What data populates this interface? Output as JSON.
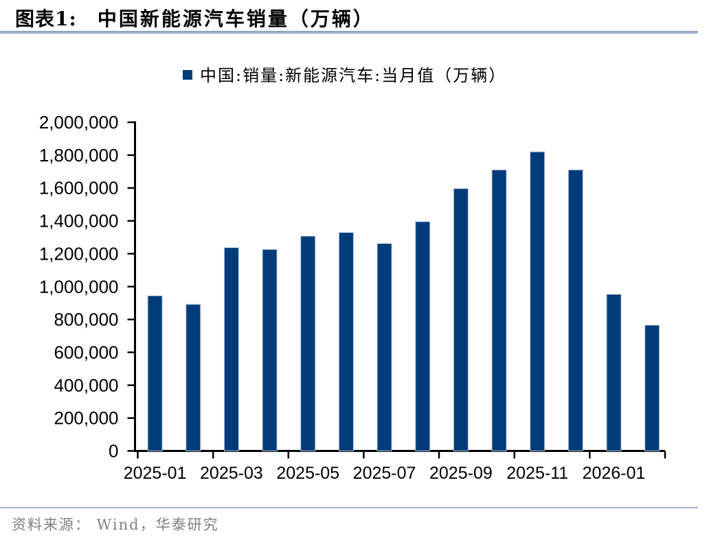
{
  "header": {
    "figure_label": "图表1:",
    "title": "中国新能源汽车销量（万辆）"
  },
  "legend": {
    "label": "中国:销量:新能源汽车:当月值（万辆）",
    "marker_color": "#003B7A"
  },
  "footer": {
    "source": "资料来源： Wind，华泰研究"
  },
  "colors": {
    "bar": "#003B7A",
    "bar_edge": "#B9C7DA",
    "axis": "#000000",
    "rule_line": "#9DB3CA",
    "source_text": "#7F7F7F"
  },
  "chart_data": {
    "type": "bar",
    "title": "中国新能源汽车销量（万辆）",
    "series_name": "中国:销量:新能源汽车:当月值（万辆）",
    "categories": [
      "2025-01",
      "2025-02",
      "2025-03",
      "2025-04",
      "2025-05",
      "2025-06",
      "2025-07",
      "2025-08",
      "2025-09",
      "2025-10",
      "2025-11",
      "2025-12",
      "2026-01",
      "2026-02"
    ],
    "values": [
      944000,
      892000,
      1237000,
      1226000,
      1307000,
      1329000,
      1262000,
      1395000,
      1596000,
      1710000,
      1820000,
      1710000,
      953000,
      765000
    ],
    "x_tick_labels": [
      "2025-01",
      "2025-03",
      "2025-05",
      "2025-07",
      "2025-09",
      "2025-11",
      "2026-01"
    ],
    "y_tick_labels": [
      "0",
      "200,000",
      "400,000",
      "600,000",
      "800,000",
      "1,000,000",
      "1,200,000",
      "1,400,000",
      "1,600,000",
      "1,800,000",
      "2,000,000"
    ],
    "y_tick_step": 200000,
    "ylim": [
      0,
      2000000
    ],
    "xlabel": "",
    "ylabel": "",
    "grid": false,
    "legend_position": "top"
  }
}
